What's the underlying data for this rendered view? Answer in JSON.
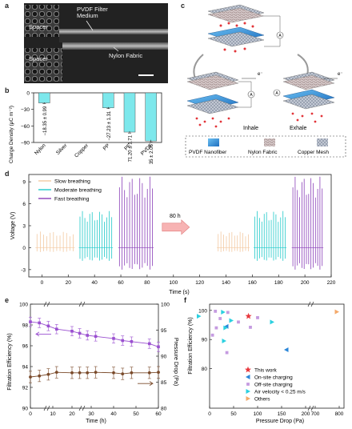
{
  "panels": {
    "a": {
      "letter": "a",
      "labels": {
        "spacer_top": "Spacer",
        "spacer_bottom": "Spacer",
        "pvdf": "PVDF Filter\nMedium",
        "nylon": "Nylon Fabric"
      }
    },
    "b": {
      "letter": "b",
      "ylabel": "Charge Density (μC m⁻²)"
    },
    "c": {
      "letter": "c",
      "labels": {
        "inhale": "Inhale",
        "exhale": "Exhale",
        "electron_left": "e⁻",
        "electron_right": "e⁻",
        "ammeter": "A"
      },
      "legend": [
        {
          "label": "PVDF Nanofiber",
          "swatch": "#2f8fd8"
        },
        {
          "label": "Nylon Fabric",
          "swatch": "#b8a8a8"
        },
        {
          "label": "Copper Mesh",
          "swatch": "#9aa6b8"
        }
      ]
    },
    "d": {
      "letter": "d",
      "ylabel": "Voltage (V)",
      "xlabel": "Time (s)",
      "arrow_label": "80 h",
      "legend": [
        {
          "label": "Slow breathing",
          "color": "#f3c9a2"
        },
        {
          "label": "Moderate breathing",
          "color": "#20c9c9"
        },
        {
          "label": "Fast breathing",
          "color": "#8a3fb8"
        }
      ]
    },
    "e": {
      "letter": "e",
      "ylabel_left": "Filtration Efficiency (%)",
      "ylabel_right": "Pressure Drop (Pa)",
      "xlabel": "Time (h)"
    },
    "f": {
      "letter": "f",
      "ylabel": "Filtration Efficiency (%)",
      "xlabel": "Pressure Drop (Pa)",
      "legend": [
        {
          "label": "This work",
          "marker": "star",
          "color": "#e8383d"
        },
        {
          "label": "On-site charging",
          "marker": "tri-left",
          "color": "#2a86d8"
        },
        {
          "label": "Off-site charging",
          "marker": "square",
          "color": "#c59be0"
        },
        {
          "label": "Air velocity < 0.25 m/s",
          "marker": "tri-right",
          "color": "#2bd0e0"
        },
        {
          "label": "Others",
          "marker": "tri-right",
          "color": "#f4a96a"
        }
      ]
    }
  },
  "chart_data": [
    {
      "id": "b",
      "type": "bar",
      "categories": [
        "Nylon",
        "Silver",
        "Copper",
        "PP",
        "PE",
        "PVDF"
      ],
      "values": [
        -18.35,
        0,
        0,
        -27.23,
        -71.2,
        -87.35
      ],
      "errors": [
        0.99,
        0,
        0,
        1.31,
        1.71,
        2.06
      ],
      "data_labels": [
        "−18.35 ± 0.99",
        "",
        "",
        "−27.23 ± 1.31",
        "71.20 ± 1.71",
        "87.35 ± 2.06"
      ],
      "ylim": [
        0,
        -90
      ],
      "yticks": [
        "0",
        "−30",
        "−60",
        "−90"
      ],
      "fill_color": "#7de8ec",
      "reference_color": "#d8283a"
    },
    {
      "id": "d",
      "type": "line",
      "xlim": [
        -10,
        220
      ],
      "xticks": [
        "0",
        "20",
        "40",
        "60",
        "80",
        "100",
        "120",
        "140",
        "160",
        "180",
        "200",
        "220"
      ],
      "ylim": [
        -4,
        10
      ],
      "yticks": [
        "-3",
        "0",
        "3",
        "6",
        "9"
      ],
      "segments": [
        {
          "series": "Slow breathing",
          "x_range": [
            -5,
            25
          ],
          "peak": 2.2,
          "trough": -0.6,
          "count": 12
        },
        {
          "series": "Moderate breathing",
          "x_range": [
            28,
            54
          ],
          "peak": 5.0,
          "trough": -1.8,
          "count": 14
        },
        {
          "series": "Fast breathing",
          "x_range": [
            58,
            85
          ],
          "peak": 9.7,
          "trough": -3.0,
          "count": 14
        },
        {
          "series": "Slow breathing",
          "x_range": [
            133,
            158
          ],
          "peak": 2.2,
          "trough": -0.6,
          "count": 12
        },
        {
          "series": "Moderate breathing",
          "x_range": [
            161,
            186
          ],
          "peak": 5.0,
          "trough": -1.8,
          "count": 14
        },
        {
          "series": "Fast breathing",
          "x_range": [
            190,
            214
          ],
          "peak": 9.7,
          "trough": -3.0,
          "count": 14
        }
      ]
    },
    {
      "id": "e",
      "type": "line",
      "x": [
        0,
        4,
        8,
        12,
        20,
        24,
        28,
        32,
        40,
        44,
        48,
        56,
        60
      ],
      "xticks": [
        "0",
        "10",
        "20",
        "30",
        "40",
        "50",
        "60"
      ],
      "ylim_left": [
        90,
        100
      ],
      "yticks_left": [
        "90",
        "92",
        "94",
        "96",
        "98",
        "100"
      ],
      "ylim_right": [
        80,
        100
      ],
      "yticks_right": [
        "80",
        "85",
        "90",
        "95",
        "100"
      ],
      "series": [
        {
          "name": "Filtration Efficiency",
          "axis": "left",
          "color": "#9a4fd0",
          "values": [
            98.3,
            98.2,
            97.9,
            97.6,
            97.4,
            97.2,
            97.0,
            96.9,
            96.7,
            96.5,
            96.4,
            96.2,
            95.9
          ],
          "error": 0.45
        },
        {
          "name": "Pressure Drop",
          "axis": "right",
          "color": "#7a4a2a",
          "values": [
            86.0,
            86.2,
            86.5,
            86.9,
            86.8,
            86.8,
            86.8,
            86.9,
            86.8,
            86.6,
            86.8,
            86.8,
            86.9
          ],
          "error": 1.1
        }
      ]
    },
    {
      "id": "f",
      "type": "scatter",
      "xticks": [
        "0",
        "50",
        "100",
        "150",
        "200",
        "700",
        "800"
      ],
      "ylim": [
        80,
        100
      ],
      "yticks": [
        "80",
        "90",
        "100"
      ],
      "points": [
        {
          "group": "This work",
          "x": 81,
          "y": 98.0
        },
        {
          "group": "On-site charging",
          "x": 160,
          "y": 86.5
        },
        {
          "group": "On-site charging",
          "x": 35,
          "y": 94.5
        },
        {
          "group": "Off-site charging",
          "x": 12,
          "y": 99.7
        },
        {
          "group": "Off-site charging",
          "x": 38,
          "y": 99.3
        },
        {
          "group": "Off-site charging",
          "x": 22,
          "y": 97.2
        },
        {
          "group": "Off-site charging",
          "x": 60,
          "y": 96.0
        },
        {
          "group": "Off-site charging",
          "x": 100,
          "y": 97.5
        },
        {
          "group": "Off-site charging",
          "x": 85,
          "y": 94.2
        },
        {
          "group": "Off-site charging",
          "x": 14,
          "y": 94.0
        },
        {
          "group": "Off-site charging",
          "x": 36,
          "y": 85.5
        },
        {
          "group": "Off-site charging",
          "x": 6,
          "y": 91.5
        },
        {
          "group": "Air velocity < 0.25 m/s",
          "x": 28,
          "y": 99.4
        },
        {
          "group": "Air velocity < 0.25 m/s",
          "x": 33,
          "y": 94.0
        },
        {
          "group": "Air velocity < 0.25 m/s",
          "x": 45,
          "y": 96.5
        },
        {
          "group": "Air velocity < 0.25 m/s",
          "x": 130,
          "y": 96.0
        },
        {
          "group": "Air velocity < 0.25 m/s",
          "x": 215,
          "y": 98.0
        },
        {
          "group": "Air velocity < 0.25 m/s",
          "x": 30,
          "y": 89.5
        },
        {
          "group": "Others",
          "x": 790,
          "y": 99.5
        }
      ]
    }
  ]
}
